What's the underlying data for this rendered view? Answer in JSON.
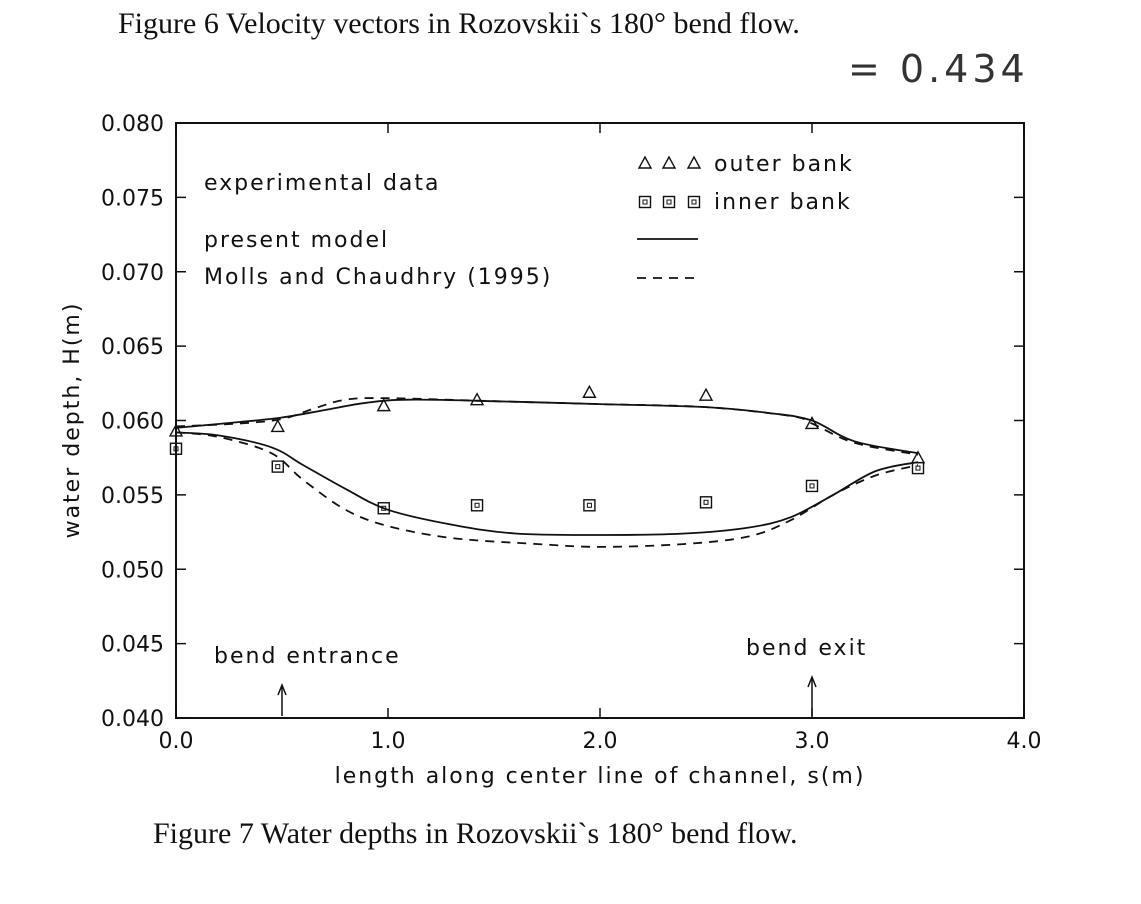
{
  "captions": {
    "top": "Figure 6   Velocity vectors in Rozovskii`s 180° bend flow.",
    "bottom": "Figure 7   Water depths in Rozovskii`s 180° bend flow."
  },
  "handwriting": "= 0.434",
  "chart_data": {
    "type": "line",
    "xlabel": "length along center line of channel, s(m)",
    "ylabel": "water depth, H(m)",
    "xlim": [
      0.0,
      4.0
    ],
    "ylim": [
      0.04,
      0.08
    ],
    "x_ticks": [
      {
        "value": 0.0,
        "label": "0.0"
      },
      {
        "value": 1.0,
        "label": "1.0"
      },
      {
        "value": 2.0,
        "label": "2.0"
      },
      {
        "value": 3.0,
        "label": "3.0"
      },
      {
        "value": 4.0,
        "label": "4.0"
      }
    ],
    "y_ticks": [
      {
        "value": 0.04,
        "label": "0.040"
      },
      {
        "value": 0.045,
        "label": "0.045"
      },
      {
        "value": 0.05,
        "label": "0.050"
      },
      {
        "value": 0.055,
        "label": "0.055"
      },
      {
        "value": 0.06,
        "label": "0.060"
      },
      {
        "value": 0.065,
        "label": "0.065"
      },
      {
        "value": 0.07,
        "label": "0.070"
      },
      {
        "value": 0.075,
        "label": "0.075"
      },
      {
        "value": 0.08,
        "label": "0.080"
      }
    ],
    "legend": {
      "experimental_label": "experimental data",
      "outer_label": "outer bank",
      "inner_label": "inner bank",
      "model_label": "present model",
      "molls_label": "Molls and Chaudhry (1995)"
    },
    "experimental": {
      "outer_bank": {
        "x": [
          0.0,
          0.48,
          0.98,
          1.42,
          1.95,
          2.5,
          3.0,
          3.5
        ],
        "y": [
          0.0593,
          0.0596,
          0.061,
          0.0614,
          0.0619,
          0.0617,
          0.0598,
          0.0575
        ]
      },
      "inner_bank": {
        "x": [
          0.0,
          0.48,
          0.98,
          1.42,
          1.95,
          2.5,
          3.0,
          3.5
        ],
        "y": [
          0.0581,
          0.0569,
          0.0541,
          0.0543,
          0.0543,
          0.0545,
          0.0556,
          0.0568
        ]
      }
    },
    "present_model": {
      "outer_bank": {
        "x": [
          0.0,
          0.3,
          0.5,
          0.7,
          0.9,
          1.1,
          1.5,
          2.0,
          2.5,
          2.8,
          3.0,
          3.2,
          3.5
        ],
        "y": [
          0.0595,
          0.0599,
          0.0602,
          0.0607,
          0.0612,
          0.0614,
          0.0613,
          0.0611,
          0.0609,
          0.0605,
          0.06,
          0.0586,
          0.0578
        ]
      },
      "inner_bank": {
        "x": [
          0.0,
          0.2,
          0.45,
          0.6,
          0.8,
          1.0,
          1.3,
          1.6,
          2.0,
          2.4,
          2.7,
          2.9,
          3.1,
          3.3,
          3.5
        ],
        "y": [
          0.0592,
          0.059,
          0.0582,
          0.057,
          0.0554,
          0.054,
          0.053,
          0.0524,
          0.0523,
          0.0524,
          0.0528,
          0.0535,
          0.055,
          0.0566,
          0.0572
        ]
      }
    },
    "molls_chaudhry_1995": {
      "outer_bank": {
        "x": [
          0.0,
          0.3,
          0.5,
          0.65,
          0.8,
          1.0,
          1.5,
          2.0,
          2.5,
          2.9,
          3.0,
          3.2,
          3.5
        ],
        "y": [
          0.0596,
          0.0598,
          0.0601,
          0.0608,
          0.0614,
          0.0615,
          0.0613,
          0.0611,
          0.0609,
          0.0603,
          0.0598,
          0.0585,
          0.0577
        ]
      },
      "inner_bank": {
        "x": [
          0.0,
          0.2,
          0.45,
          0.6,
          0.8,
          1.0,
          1.3,
          1.7,
          2.0,
          2.4,
          2.7,
          2.9,
          3.1,
          3.3,
          3.5
        ],
        "y": [
          0.0592,
          0.0589,
          0.0578,
          0.056,
          0.054,
          0.0529,
          0.0521,
          0.0517,
          0.0515,
          0.0517,
          0.0522,
          0.0533,
          0.055,
          0.0563,
          0.057
        ]
      }
    },
    "annotations": [
      {
        "text": "bend entrance",
        "x": 0.5
      },
      {
        "text": "bend exit",
        "x": 3.0
      }
    ]
  }
}
